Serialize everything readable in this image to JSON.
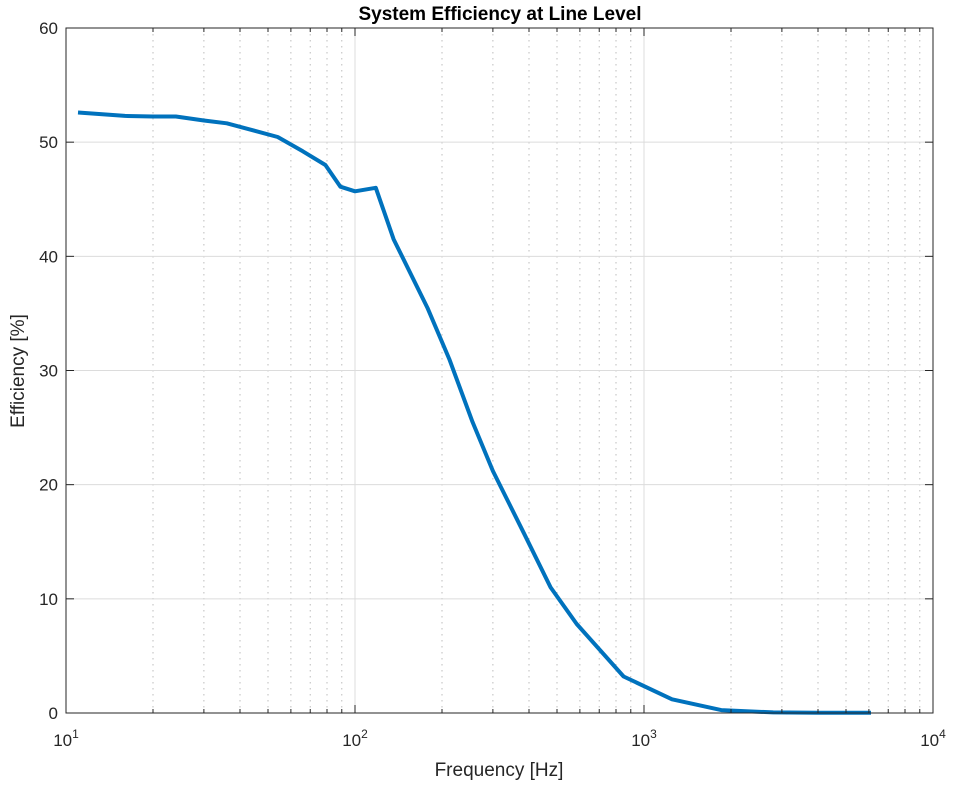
{
  "chart_data": {
    "type": "line",
    "title": "System Efficiency at Line Level",
    "xlabel": "Frequency [Hz]",
    "ylabel": "Efficiency [%]",
    "xscale": "log",
    "xlim": [
      10,
      10000
    ],
    "ylim": [
      0,
      60
    ],
    "x_ticks": [
      {
        "value": 10,
        "base": "10",
        "exp": "1"
      },
      {
        "value": 100,
        "base": "10",
        "exp": "2"
      },
      {
        "value": 1000,
        "base": "10",
        "exp": "3"
      },
      {
        "value": 10000,
        "base": "10",
        "exp": "4"
      }
    ],
    "y_ticks": [
      "0",
      "10",
      "20",
      "30",
      "40",
      "50",
      "60"
    ],
    "grid": true,
    "minor_grid": true,
    "line_color": "#0072BD",
    "series": [
      {
        "x": [
          11,
          16,
          20,
          24,
          30,
          36,
          45,
          54,
          66,
          79,
          89,
          100,
          118,
          136,
          178,
          212,
          255,
          300,
          385,
          475,
          585,
          850,
          1250,
          1850,
          2800,
          4000,
          6100
        ],
        "y": [
          52.6,
          52.3,
          52.25,
          52.25,
          51.9,
          51.65,
          51.0,
          50.45,
          49.2,
          48.0,
          46.1,
          45.7,
          46.0,
          41.5,
          35.5,
          31.0,
          25.5,
          21.2,
          15.7,
          11.0,
          7.8,
          3.2,
          1.2,
          0.25,
          0.05,
          0.02,
          0.02
        ]
      }
    ]
  }
}
